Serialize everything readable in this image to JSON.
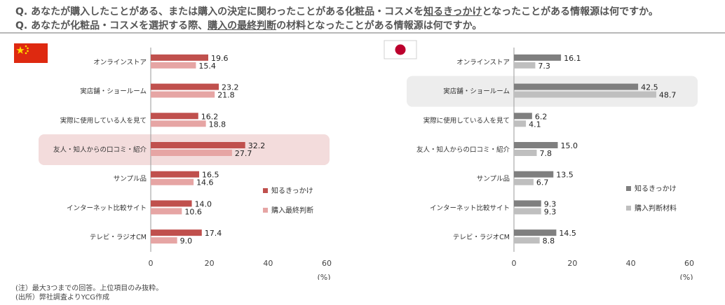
{
  "questions": {
    "q1_prefix": "Q. あなたが購入したことがある、または購入の決定に関わったことがある化粧品・コスメを",
    "q1_emphasis": "知るきっかけ",
    "q1_suffix": "となったことがある情報源は何ですか。",
    "q2_prefix": "Q. あなたが化粧品・コスメを選択する際、",
    "q2_emphasis": "購入の最終判断",
    "q2_suffix": "の材料となったことがある情報源は何ですか。"
  },
  "notes": {
    "note1": "(注）最大3つまでの回答。上位項目のみ抜粋。",
    "note2": "(出所）弊社調査よりYCG作成"
  },
  "flags": {
    "cn": "china-flag-icon",
    "jp": "japan-flag-icon"
  },
  "chart_data": [
    {
      "type": "bar",
      "orientation": "horizontal",
      "region": "China",
      "categories": [
        "オンラインストア",
        "実店舗・ショールーム",
        "実際に使用している人を見て",
        "友人・知人からの口コミ・紹介",
        "サンプル品",
        "インターネット比較サイト",
        "テレビ・ラジオCM"
      ],
      "series": [
        {
          "name": "知るきっかけ",
          "values": [
            19.6,
            23.2,
            16.2,
            32.2,
            16.5,
            14.0,
            17.4
          ],
          "color": "#c0504d"
        },
        {
          "name": "購入最終判断",
          "values": [
            15.4,
            21.8,
            18.8,
            27.7,
            14.6,
            10.6,
            9.0
          ],
          "color": "#e6a5a4"
        }
      ],
      "value_labels": [
        [
          "19.6",
          "23.2",
          "16.2",
          "32.2",
          "16.5",
          "14.0",
          "17.4"
        ],
        [
          "15.4",
          "21.8",
          "18.8",
          "27.7",
          "14.6",
          "10.6",
          "9.0"
        ]
      ],
      "xlim": [
        0,
        60
      ],
      "xticks": [
        "0",
        "20",
        "40",
        "60"
      ],
      "xunit": "(%)",
      "highlight_index": 3,
      "highlight_color": "#f3dcdc",
      "legend_position": "right"
    },
    {
      "type": "bar",
      "orientation": "horizontal",
      "region": "Japan",
      "categories": [
        "オンラインストア",
        "実店舗・ショールーム",
        "実際に使用している人を見て",
        "友人・知人からの口コミ・紹介",
        "サンプル品",
        "インターネット比較サイト",
        "テレビ・ラジオCM"
      ],
      "series": [
        {
          "name": "知るきっかけ",
          "values": [
            16.1,
            42.5,
            6.2,
            15.0,
            13.5,
            9.3,
            14.5
          ],
          "color": "#7f7f7f"
        },
        {
          "name": "購入判断材料",
          "values": [
            7.3,
            48.7,
            4.1,
            7.8,
            6.7,
            9.3,
            8.8
          ],
          "color": "#bfbfbf"
        }
      ],
      "value_labels": [
        [
          "16.1",
          "42.5",
          "6.2",
          "15.0",
          "13.5",
          "9.3",
          "14.5"
        ],
        [
          "7.3",
          "48.7",
          "4.1",
          "7.8",
          "6.7",
          "9.3",
          "8.8"
        ]
      ],
      "xlim": [
        0,
        60
      ],
      "xticks": [
        "0",
        "20",
        "40",
        "60"
      ],
      "xunit": "(%)",
      "highlight_index": 1,
      "highlight_color": "#ededed",
      "legend_position": "right"
    }
  ]
}
